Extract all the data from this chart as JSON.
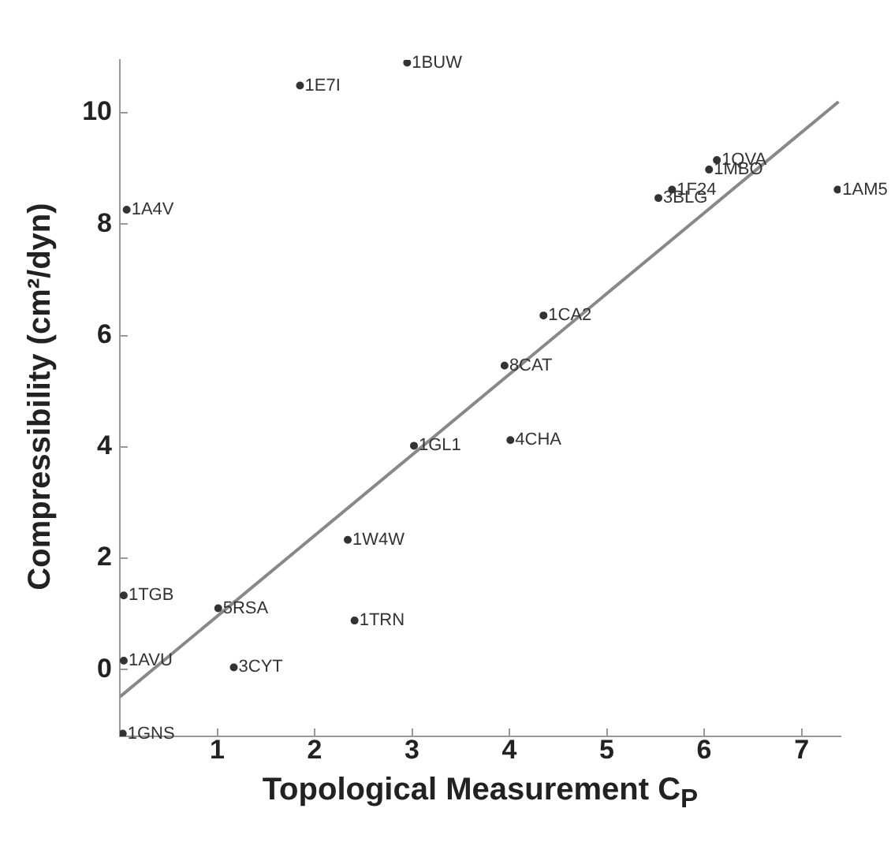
{
  "chart_data": {
    "type": "scatter",
    "xlabel": "Topological Measurement C$_{P}$",
    "ylabel": "Compressibility (cm²/dyn)",
    "xlim": [
      0,
      7.4
    ],
    "ylim": [
      -1.2,
      10.95
    ],
    "xticks": [
      1,
      2,
      3,
      4,
      5,
      6,
      7
    ],
    "yticks": [
      0,
      2,
      4,
      6,
      8,
      10
    ],
    "grid": false,
    "legend": false,
    "marker": "circle",
    "series": [
      {
        "type": "scatter",
        "color": "#333333",
        "x": [
          2.95,
          1.85,
          0.07,
          6.13,
          6.05,
          5.67,
          5.53,
          7.37,
          4.35,
          3.95,
          3.02,
          4.01,
          2.34,
          0.04,
          1.01,
          2.41,
          0.04,
          1.17,
          0.03
        ],
        "values": [
          10.9,
          10.49,
          8.26,
          9.15,
          8.98,
          8.62,
          8.47,
          8.62,
          6.36,
          5.46,
          4.02,
          4.12,
          2.33,
          1.33,
          1.1,
          0.88,
          0.16,
          0.04,
          -1.15
        ]
      },
      {
        "type": "line",
        "color": "#888888",
        "marker": "none",
        "x": [
          0,
          7.38
        ],
        "values": [
          -0.49,
          10.2
        ]
      }
    ],
    "annotations": [
      {
        "text": "1BUW",
        "x": 2.95,
        "y": 10.9
      },
      {
        "text": "1E7I",
        "x": 1.85,
        "y": 10.49
      },
      {
        "text": "1A4V",
        "x": 0.07,
        "y": 8.26
      },
      {
        "text": "1QVA",
        "x": 6.13,
        "y": 9.15
      },
      {
        "text": "1MBO",
        "x": 6.05,
        "y": 8.98
      },
      {
        "text": "1F24",
        "x": 5.67,
        "y": 8.62
      },
      {
        "text": "3BLG",
        "x": 5.53,
        "y": 8.47
      },
      {
        "text": "1AM5",
        "x": 7.37,
        "y": 8.62
      },
      {
        "text": "1CA2",
        "x": 4.35,
        "y": 6.36
      },
      {
        "text": "8CAT",
        "x": 3.95,
        "y": 5.46
      },
      {
        "text": "1GL1",
        "x": 3.02,
        "y": 4.02
      },
      {
        "text": "4CHA",
        "x": 4.01,
        "y": 4.12
      },
      {
        "text": "1W4W",
        "x": 2.34,
        "y": 2.33
      },
      {
        "text": "1TGB",
        "x": 0.04,
        "y": 1.33
      },
      {
        "text": "5RSA",
        "x": 1.01,
        "y": 1.1
      },
      {
        "text": "1TRN",
        "x": 2.41,
        "y": 0.88
      },
      {
        "text": "1AVU",
        "x": 0.04,
        "y": 0.16
      },
      {
        "text": "3CYT",
        "x": 1.17,
        "y": 0.04
      },
      {
        "text": "1GNS",
        "x": 0.03,
        "y": -1.15
      }
    ]
  }
}
